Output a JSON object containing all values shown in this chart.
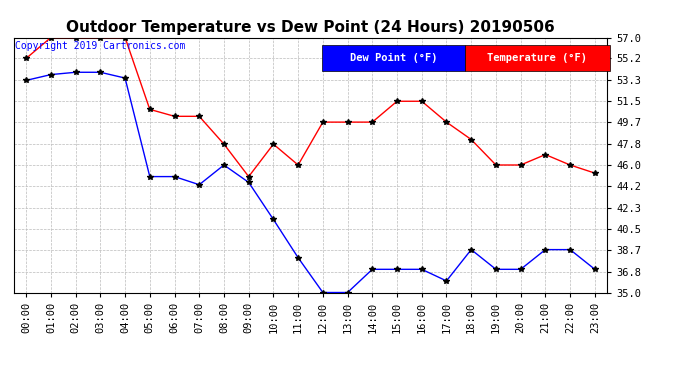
{
  "title": "Outdoor Temperature vs Dew Point (24 Hours) 20190506",
  "copyright": "Copyright 2019 Cartronics.com",
  "legend_label_dew": "Dew Point (°F)",
  "legend_label_temp": "Temperature (°F)",
  "x_labels": [
    "00:00",
    "01:00",
    "02:00",
    "03:00",
    "04:00",
    "05:00",
    "06:00",
    "07:00",
    "08:00",
    "09:00",
    "10:00",
    "11:00",
    "12:00",
    "13:00",
    "14:00",
    "15:00",
    "16:00",
    "17:00",
    "18:00",
    "19:00",
    "20:00",
    "21:00",
    "22:00",
    "23:00"
  ],
  "temperature": [
    55.2,
    57.0,
    57.0,
    57.0,
    57.0,
    50.8,
    50.2,
    50.2,
    47.8,
    45.0,
    47.8,
    46.0,
    49.7,
    49.7,
    49.7,
    51.5,
    51.5,
    49.7,
    48.2,
    46.0,
    46.0,
    46.9,
    46.0,
    45.3
  ],
  "dew_point": [
    53.3,
    53.8,
    54.0,
    54.0,
    53.5,
    45.0,
    45.0,
    44.3,
    46.0,
    44.5,
    41.3,
    38.0,
    35.0,
    35.0,
    37.0,
    37.0,
    37.0,
    36.0,
    38.7,
    37.0,
    37.0,
    38.7,
    38.7,
    37.0
  ],
  "ylim": [
    35.0,
    57.0
  ],
  "yticks": [
    35.0,
    36.8,
    38.7,
    40.5,
    42.3,
    44.2,
    46.0,
    47.8,
    49.7,
    51.5,
    53.3,
    55.2,
    57.0
  ],
  "background_color": "#ffffff",
  "grid_color": "#bbbbbb",
  "title_fontsize": 11,
  "tick_fontsize": 7.5,
  "copyright_fontsize": 7,
  "legend_fontsize": 7.5,
  "line_width": 1.0,
  "marker_size": 4
}
